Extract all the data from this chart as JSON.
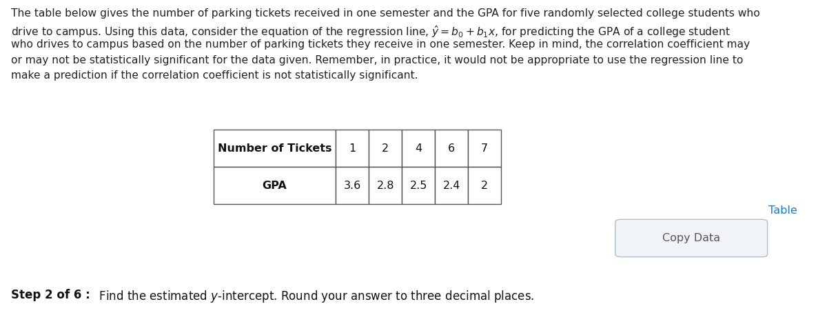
{
  "bg_color": "#ffffff",
  "para_lines": [
    "The table below gives the number of parking tickets received in one semester and the GPA for five randomly selected college students who",
    "drive to campus. Using this data, consider the equation of the regression line, $\\hat{y} = b_0 + b_1x$, for predicting the GPA of a college student",
    "who drives to campus based on the number of parking tickets they receive in one semester. Keep in mind, the correlation coefficient may",
    "or may not be statistically significant for the data given. Remember, in practice, it would not be appropriate to use the regression line to",
    "make a prediction if the correlation coefficient is not statistically significant."
  ],
  "table_col_labels": [
    "Number of Tickets",
    "1",
    "2",
    "4",
    "6",
    "7"
  ],
  "table_row2_labels": [
    "GPA",
    "3.6",
    "2.8",
    "2.5",
    "2.4",
    "2"
  ],
  "table_link_text": "Table",
  "table_link_color": "#1a7ac7",
  "copy_button_text": "Copy Data",
  "copy_button_bg": "#f0f4f8",
  "copy_button_border": "#b0bec5",
  "step_bold": "Step 2 of 6 :",
  "step_normal": "  Find the estimated $y$-intercept. Round your answer to three decimal places.",
  "font_size_para": 11.2,
  "font_size_table": 11.5,
  "font_size_step": 12.0,
  "text_color": "#222222",
  "table_border_color": "#555555"
}
